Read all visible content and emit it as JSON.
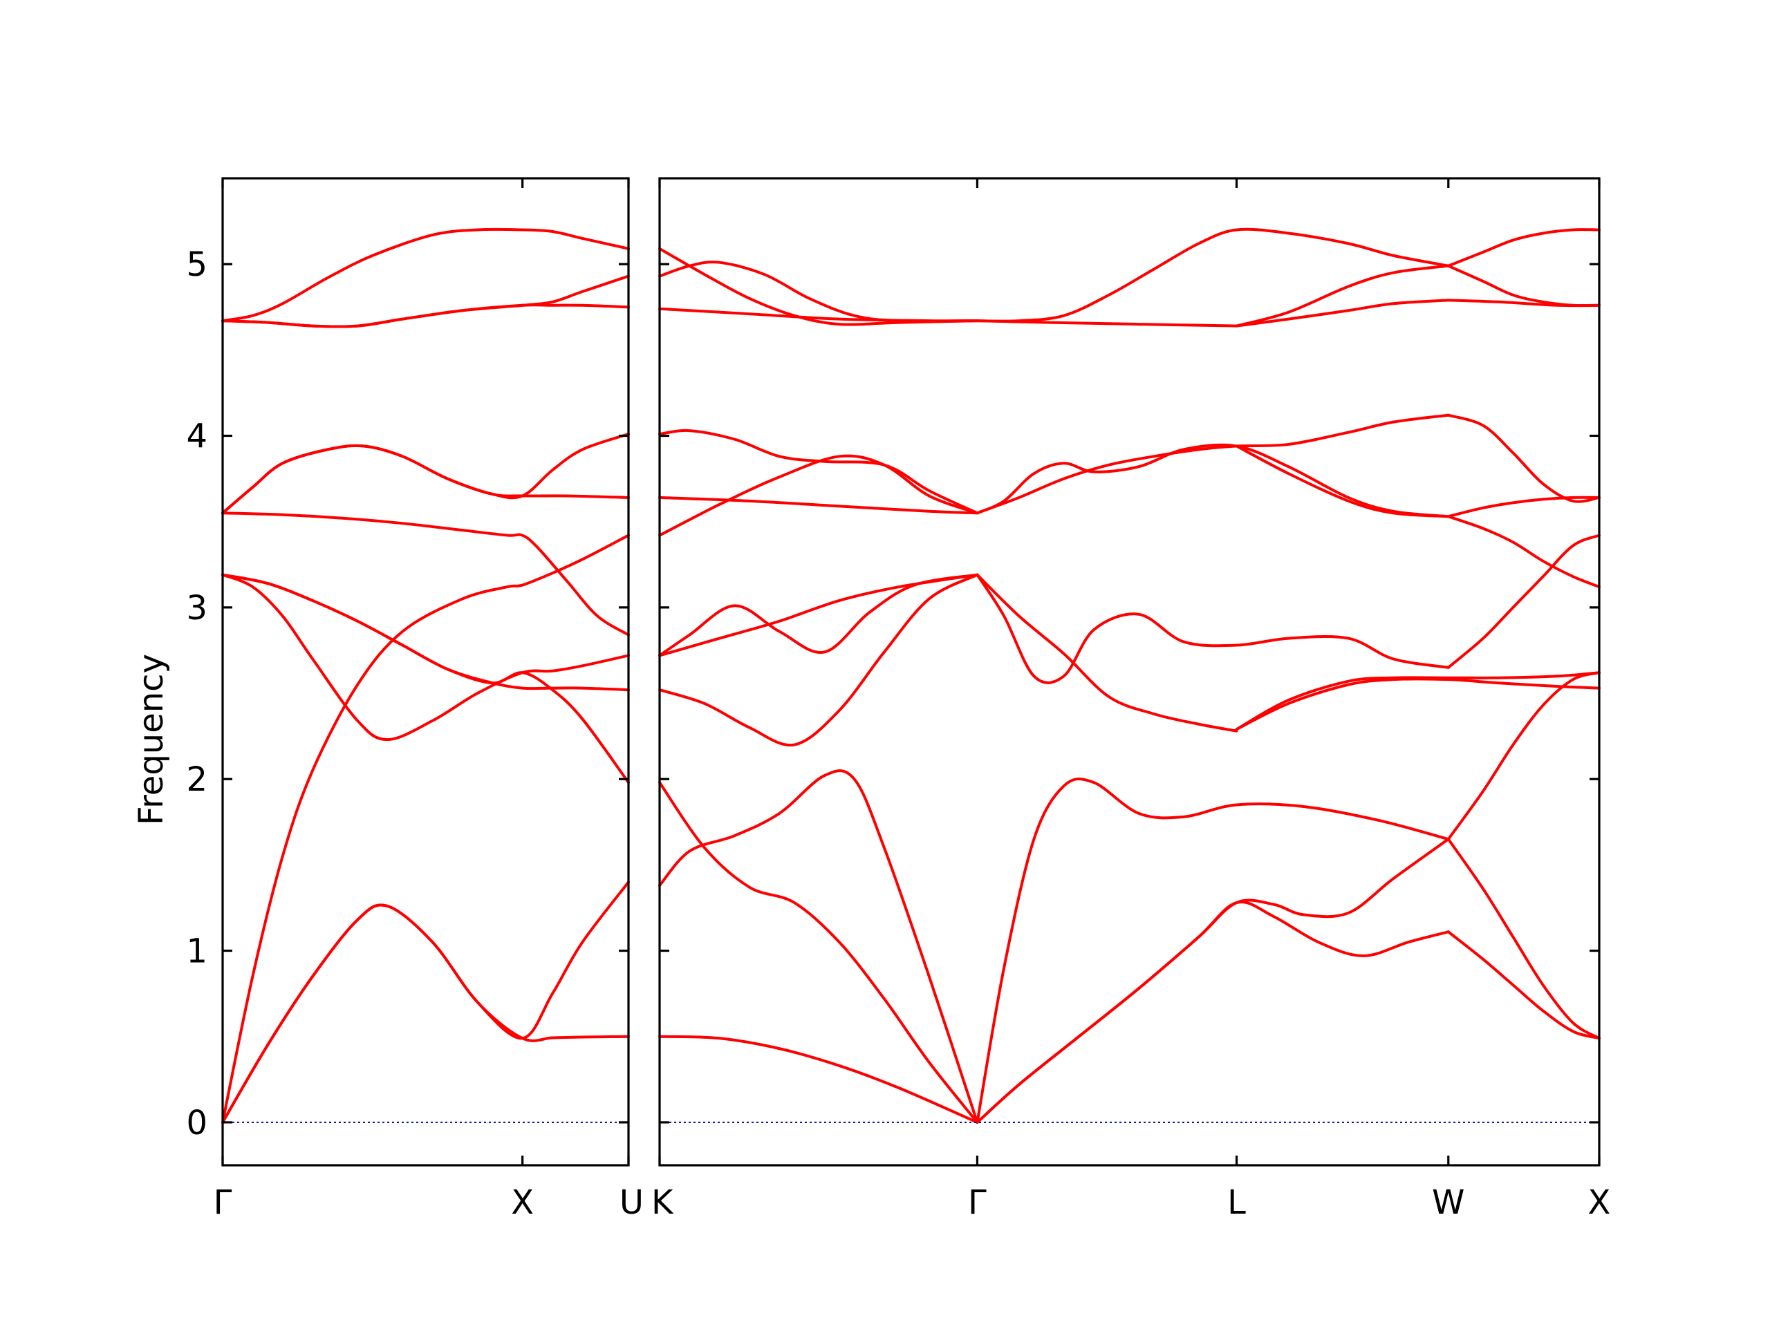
{
  "figure": {
    "colors": {
      "band": "#ff0000",
      "zero_line": "#0000aa",
      "frame": "#000000"
    }
  },
  "chart_data": [
    {
      "type": "line",
      "panel": "left",
      "ylabel": "Frequency",
      "ylim": [
        -0.25,
        5.5
      ],
      "xlim": [
        0,
        1.3536
      ],
      "yticks": [
        0,
        1,
        2,
        3,
        4,
        5
      ],
      "ytick_labels": [
        "0",
        "1",
        "2",
        "3",
        "4",
        "5"
      ],
      "xticks": [
        0,
        1.0,
        1.3536
      ],
      "xtick_labels": [
        "Γ",
        "X",
        "U"
      ],
      "zero_line": true,
      "series": [
        {
          "x": [
            0,
            0.15,
            0.3,
            0.45,
            0.55,
            0.7,
            0.85,
            1.0,
            1.1,
            1.2,
            1.3536
          ],
          "y": [
            0,
            0.45,
            0.85,
            1.18,
            1.26,
            1.05,
            0.7,
            0.49,
            0.493,
            0.497,
            0.5
          ]
        },
        {
          "x": [
            0,
            0.15,
            0.3,
            0.45,
            0.55,
            0.7,
            0.85,
            1.0,
            1.1,
            1.2,
            1.3536
          ],
          "y": [
            0,
            0.45,
            0.85,
            1.18,
            1.26,
            1.05,
            0.7,
            0.49,
            0.75,
            1.05,
            1.4
          ]
        },
        {
          "x": [
            0,
            0.1,
            0.2,
            0.3,
            0.45,
            0.6,
            0.8,
            0.95,
            1.0,
            1.1,
            1.2,
            1.3536
          ],
          "y": [
            0,
            0.85,
            1.55,
            2.05,
            2.55,
            2.86,
            3.05,
            3.12,
            3.13,
            3.2,
            3.28,
            3.42
          ]
        },
        {
          "x": [
            0,
            0.1,
            0.2,
            0.3,
            0.45,
            0.55,
            0.7,
            0.85,
            1.0,
            1.1,
            1.2,
            1.3536
          ],
          "y": [
            3.19,
            3.12,
            2.95,
            2.7,
            2.34,
            2.23,
            2.34,
            2.5,
            2.62,
            2.63,
            2.66,
            2.72
          ]
        },
        {
          "x": [
            0,
            0.15,
            0.3,
            0.45,
            0.6,
            0.75,
            0.9,
            1.0,
            1.1,
            1.2,
            1.3536
          ],
          "y": [
            3.19,
            3.14,
            3.04,
            2.92,
            2.78,
            2.64,
            2.56,
            2.53,
            2.53,
            2.53,
            2.52
          ]
        },
        {
          "x": [
            0,
            0.15,
            0.3,
            0.45,
            0.6,
            0.75,
            0.9,
            1.0,
            1.1,
            1.2,
            1.3536
          ],
          "y": [
            3.19,
            3.14,
            3.04,
            2.92,
            2.78,
            2.64,
            2.56,
            2.62,
            2.52,
            2.35,
            1.98
          ]
        },
        {
          "x": [
            0,
            0.2,
            0.4,
            0.6,
            0.8,
            0.95,
            1.0,
            1.05,
            1.15,
            1.25,
            1.3536
          ],
          "y": [
            3.55,
            3.54,
            3.52,
            3.49,
            3.45,
            3.42,
            3.42,
            3.35,
            3.15,
            2.95,
            2.84
          ]
        },
        {
          "x": [
            0,
            0.1,
            0.2,
            0.35,
            0.47,
            0.6,
            0.75,
            0.9,
            1.0,
            1.15,
            1.3536
          ],
          "y": [
            3.55,
            3.7,
            3.84,
            3.92,
            3.94,
            3.88,
            3.75,
            3.66,
            3.65,
            3.65,
            3.64
          ]
        },
        {
          "x": [
            0,
            0.1,
            0.2,
            0.35,
            0.47,
            0.6,
            0.75,
            0.9,
            1.0,
            1.1,
            1.2,
            1.3536
          ],
          "y": [
            3.55,
            3.7,
            3.84,
            3.92,
            3.94,
            3.88,
            3.75,
            3.66,
            3.65,
            3.8,
            3.92,
            4.01
          ]
        },
        {
          "x": [
            0,
            0.1,
            0.2,
            0.35,
            0.5,
            0.7,
            0.85,
            1.0,
            1.1,
            1.2,
            1.3536
          ],
          "y": [
            4.67,
            4.7,
            4.77,
            4.92,
            5.05,
            5.17,
            5.2,
            5.2,
            5.19,
            5.15,
            5.09
          ]
        },
        {
          "x": [
            0,
            0.15,
            0.3,
            0.45,
            0.6,
            0.8,
            1.0,
            1.1,
            1.2,
            1.3536
          ],
          "y": [
            4.67,
            4.66,
            4.64,
            4.64,
            4.68,
            4.73,
            4.76,
            4.76,
            4.76,
            4.75
          ]
        },
        {
          "x": [
            0,
            0.15,
            0.3,
            0.45,
            0.6,
            0.8,
            1.0,
            1.1,
            1.2,
            1.3536
          ],
          "y": [
            4.67,
            4.66,
            4.64,
            4.64,
            4.68,
            4.73,
            4.76,
            4.78,
            4.84,
            4.93
          ]
        }
      ]
    },
    {
      "type": "line",
      "panel": "right",
      "ylim": [
        -0.25,
        5.5
      ],
      "xlim": [
        0,
        3.1376
      ],
      "yticks": [
        0,
        1,
        2,
        3,
        4,
        5
      ],
      "xticks": [
        0,
        1.0607,
        1.9267,
        2.6338,
        3.1376
      ],
      "xtick_labels": [
        "K",
        "Γ",
        "L",
        "W",
        "X"
      ],
      "zero_line": true,
      "series": [
        {
          "x": [
            0,
            0.2,
            0.4,
            0.6,
            0.8,
            1.0607
          ],
          "y": [
            0.5,
            0.49,
            0.43,
            0.33,
            0.2,
            0
          ]
        },
        {
          "x": [
            0,
            0.15,
            0.3,
            0.45,
            0.6,
            0.75,
            0.9,
            1.0607
          ],
          "y": [
            1.98,
            1.6,
            1.37,
            1.28,
            1.05,
            0.72,
            0.35,
            0
          ]
        },
        {
          "x": [
            0,
            0.1,
            0.25,
            0.4,
            0.55,
            0.65,
            0.75,
            0.9,
            1.0607
          ],
          "y": [
            1.38,
            1.58,
            1.67,
            1.8,
            2.02,
            2.0,
            1.6,
            0.85,
            0
          ]
        },
        {
          "x": [
            1.0607,
            1.2,
            1.4,
            1.6,
            1.8,
            1.9267,
            2.05,
            2.15,
            2.3,
            2.45,
            2.6338
          ],
          "y": [
            0,
            0.22,
            0.5,
            0.78,
            1.08,
            1.28,
            1.27,
            1.21,
            1.22,
            1.42,
            1.65
          ]
        },
        {
          "x": [
            1.0607,
            1.2,
            1.4,
            1.6,
            1.8,
            1.9267,
            2.05,
            2.2,
            2.35,
            2.5,
            2.6338
          ],
          "y": [
            0,
            0.22,
            0.5,
            0.78,
            1.08,
            1.28,
            1.2,
            1.05,
            0.97,
            1.05,
            1.11
          ]
        },
        {
          "x": [
            2.6338,
            2.75,
            2.85,
            2.95,
            3.05,
            3.1376
          ],
          "y": [
            1.11,
            0.95,
            0.8,
            0.65,
            0.53,
            0.49
          ]
        },
        {
          "x": [
            2.6338,
            2.75,
            2.85,
            2.95,
            3.05,
            3.1376
          ],
          "y": [
            1.65,
            1.36,
            1.08,
            0.8,
            0.58,
            0.49
          ]
        },
        {
          "x": [
            2.6338,
            2.75,
            2.85,
            2.95,
            3.05,
            3.1376
          ],
          "y": [
            1.65,
            1.93,
            2.2,
            2.43,
            2.58,
            2.62
          ]
        },
        {
          "x": [
            1.0607,
            1.15,
            1.25,
            1.35,
            1.45,
            1.6,
            1.75,
            1.9267,
            2.15,
            2.4,
            2.6338
          ],
          "y": [
            0,
            0.9,
            1.65,
            1.96,
            1.98,
            1.8,
            1.78,
            1.85,
            1.84,
            1.76,
            1.65
          ]
        },
        {
          "x": [
            0,
            0.15,
            0.3,
            0.45,
            0.6,
            0.75,
            0.9,
            1.0607
          ],
          "y": [
            2.52,
            2.44,
            2.3,
            2.2,
            2.4,
            2.74,
            3.05,
            3.19
          ]
        },
        {
          "x": [
            0,
            0.2,
            0.4,
            0.6,
            0.8,
            1.0607
          ],
          "y": [
            2.72,
            2.82,
            2.92,
            3.04,
            3.12,
            3.19
          ]
        },
        {
          "x": [
            0,
            0.1,
            0.25,
            0.4,
            0.55,
            0.7,
            0.85,
            1.0607
          ],
          "y": [
            2.72,
            2.84,
            3.01,
            2.86,
            2.74,
            2.97,
            3.13,
            3.19
          ]
        },
        {
          "x": [
            1.0607,
            1.2,
            1.35,
            1.5,
            1.65,
            1.8,
            1.9267
          ],
          "y": [
            3.19,
            2.95,
            2.73,
            2.48,
            2.38,
            2.32,
            2.28
          ]
        },
        {
          "x": [
            1.0607,
            1.15,
            1.25,
            1.35,
            1.45,
            1.6,
            1.75,
            1.9267,
            2.1,
            2.3,
            2.45,
            2.6338
          ],
          "y": [
            3.19,
            2.95,
            2.6,
            2.6,
            2.87,
            2.96,
            2.8,
            2.78,
            2.82,
            2.82,
            2.7,
            2.65
          ]
        },
        {
          "x": [
            2.6338,
            2.75,
            2.85,
            2.95,
            3.05,
            3.1376
          ],
          "y": [
            2.65,
            2.82,
            3.0,
            3.18,
            3.36,
            3.42
          ]
        },
        {
          "x": [
            1.9267,
            2.1,
            2.3,
            2.45,
            2.6338,
            2.8,
            3.0,
            3.1376
          ],
          "y": [
            2.29,
            2.46,
            2.57,
            2.59,
            2.59,
            2.59,
            2.6,
            2.62
          ]
        },
        {
          "x": [
            1.9267,
            2.1,
            2.3,
            2.45,
            2.6338,
            2.8,
            3.0,
            3.1376
          ],
          "y": [
            2.29,
            2.44,
            2.55,
            2.58,
            2.58,
            2.56,
            2.54,
            2.53
          ]
        },
        {
          "x": [
            0,
            0.3,
            0.6,
            0.9,
            1.0607
          ],
          "y": [
            3.64,
            3.62,
            3.59,
            3.56,
            3.55
          ]
        },
        {
          "x": [
            0,
            0.2,
            0.4,
            0.6,
            0.75,
            0.9,
            1.0607
          ],
          "y": [
            3.42,
            3.6,
            3.76,
            3.88,
            3.83,
            3.65,
            3.55
          ]
        },
        {
          "x": [
            0,
            0.1,
            0.25,
            0.4,
            0.55,
            0.75,
            0.9,
            1.0607
          ],
          "y": [
            4.01,
            4.03,
            3.98,
            3.88,
            3.85,
            3.83,
            3.68,
            3.55
          ]
        },
        {
          "x": [
            1.0607,
            1.2,
            1.35,
            1.5,
            1.65,
            1.8,
            1.9267,
            2.1,
            2.3,
            2.45,
            2.6338
          ],
          "y": [
            3.55,
            3.64,
            3.75,
            3.83,
            3.88,
            3.92,
            3.94,
            3.95,
            4.02,
            4.08,
            4.12
          ]
        },
        {
          "x": [
            1.0607,
            1.15,
            1.25,
            1.35,
            1.45,
            1.6,
            1.75,
            1.9267,
            2.1,
            2.3,
            2.45,
            2.6338
          ],
          "y": [
            3.55,
            3.62,
            3.78,
            3.84,
            3.79,
            3.82,
            3.92,
            3.94,
            3.82,
            3.64,
            3.56,
            3.53
          ]
        },
        {
          "x": [
            1.9267,
            2.1,
            2.3,
            2.45,
            2.6338
          ],
          "y": [
            3.94,
            3.78,
            3.62,
            3.55,
            3.53
          ]
        },
        {
          "x": [
            2.6338,
            2.75,
            2.85,
            2.95,
            3.05,
            3.1376
          ],
          "y": [
            4.12,
            4.06,
            3.9,
            3.72,
            3.62,
            3.64
          ]
        },
        {
          "x": [
            2.6338,
            2.75,
            2.85,
            2.95,
            3.05,
            3.1376
          ],
          "y": [
            3.53,
            3.58,
            3.61,
            3.63,
            3.64,
            3.64
          ]
        },
        {
          "x": [
            2.6338,
            2.75,
            2.85,
            2.95,
            3.05,
            3.1376
          ],
          "y": [
            3.53,
            3.46,
            3.38,
            3.27,
            3.18,
            3.12
          ]
        },
        {
          "x": [
            0,
            0.3,
            0.6,
            0.9,
            1.0607,
            1.3,
            1.6,
            1.9267
          ],
          "y": [
            4.74,
            4.71,
            4.68,
            4.67,
            4.67,
            4.66,
            4.65,
            4.64
          ]
        },
        {
          "x": [
            0,
            0.1,
            0.2,
            0.35,
            0.5,
            0.65,
            0.8,
            1.0607
          ],
          "y": [
            4.93,
            4.99,
            5.01,
            4.94,
            4.8,
            4.7,
            4.67,
            4.67
          ]
        },
        {
          "x": [
            0,
            0.15,
            0.3,
            0.45,
            0.6,
            0.8,
            1.0607
          ],
          "y": [
            5.09,
            4.94,
            4.8,
            4.7,
            4.65,
            4.66,
            4.67
          ]
        },
        {
          "x": [
            1.0607,
            1.2,
            1.35,
            1.5,
            1.65,
            1.8,
            1.9267,
            2.1,
            2.3,
            2.45,
            2.6338
          ],
          "y": [
            4.67,
            4.67,
            4.7,
            4.82,
            4.97,
            5.12,
            5.2,
            5.18,
            5.12,
            5.05,
            4.99
          ]
        },
        {
          "x": [
            1.9267,
            2.1,
            2.3,
            2.45,
            2.6338
          ],
          "y": [
            4.64,
            4.68,
            4.73,
            4.77,
            4.79
          ]
        },
        {
          "x": [
            1.9267,
            2.1,
            2.3,
            2.45,
            2.6338
          ],
          "y": [
            4.64,
            4.72,
            4.87,
            4.95,
            4.99
          ]
        },
        {
          "x": [
            2.6338,
            2.75,
            2.85,
            2.95,
            3.05,
            3.1376
          ],
          "y": [
            4.99,
            5.07,
            5.14,
            5.18,
            5.2,
            5.2
          ]
        },
        {
          "x": [
            2.6338,
            2.75,
            2.85,
            2.95,
            3.05,
            3.1376
          ],
          "y": [
            4.99,
            4.9,
            4.82,
            4.78,
            4.76,
            4.76
          ]
        },
        {
          "x": [
            2.6338,
            2.8,
            3.0,
            3.1376
          ],
          "y": [
            4.79,
            4.78,
            4.76,
            4.76
          ]
        }
      ]
    }
  ]
}
